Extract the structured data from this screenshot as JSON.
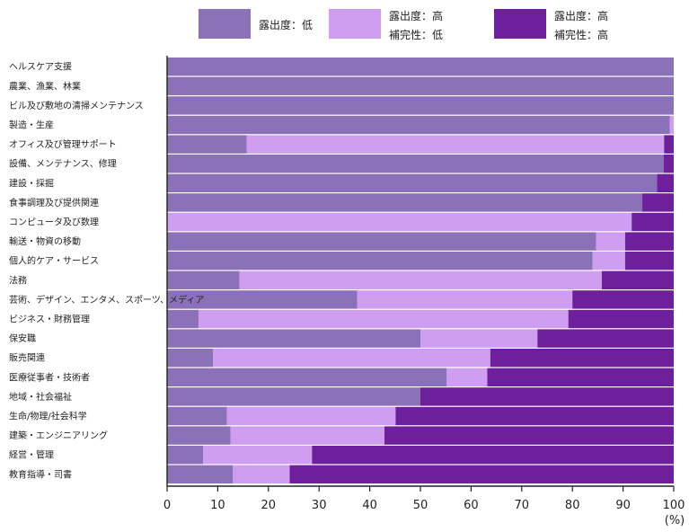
{
  "chart_data": {
    "type": "bar",
    "orientation": "horizontal",
    "stacked": true,
    "title": "",
    "xlabel": "",
    "x_unit": "(%)",
    "xlim": [
      0,
      100
    ],
    "xticks": [
      0,
      10,
      20,
      30,
      40,
      50,
      60,
      70,
      80,
      90,
      100
    ],
    "grid": false,
    "legend_position": "top",
    "categories": [
      "ヘルスケア支援",
      "農業、漁業、林業",
      "ビル及び敷地の清掃メンテナンス",
      "製造・生産",
      "オフィス及び管理サポート",
      "設備、メンテナンス、修理",
      "建設・採掘",
      "食事調理及び提供関連",
      "コンピュータ及び数理",
      "輸送・物資の移動",
      "個人的ケア・サービス",
      "法務",
      "芸術、デザイン、エンタメ、スポーツ、メディア",
      "ビジネス・財務管理",
      "保安職",
      "販売関連",
      "医療従事者・技術者",
      "地域・社会福祉",
      "生命/物理/社会科学",
      "建築・エンジニアリング",
      "経営・管理",
      "教育指導・司書"
    ],
    "series": [
      {
        "name": "露出度：低",
        "color": "#8b72b8",
        "values": [
          100,
          100,
          100,
          99.2,
          15.7,
          98,
          96.7,
          93.8,
          0,
          84.7,
          84,
          14.3,
          37.5,
          6.2,
          50,
          9.1,
          55.2,
          50,
          11.8,
          12.5,
          7.1,
          13
        ]
      },
      {
        "name": "露出度：高\n補完性：低",
        "color": "#cf9ef0",
        "values": [
          0,
          0,
          0,
          0.8,
          82.4,
          0,
          0,
          0,
          91.7,
          5.7,
          6.4,
          71.5,
          42.5,
          73,
          23.1,
          54.7,
          8,
          0,
          33.3,
          30.4,
          21.5,
          11.2
        ]
      },
      {
        "name": "露出度：高\n補完性：高",
        "color": "#6d1f9c",
        "values": [
          0,
          0,
          0,
          0,
          1.9,
          2,
          3.3,
          6.2,
          8.3,
          9.6,
          9.6,
          14.2,
          20,
          20.8,
          26.9,
          36.2,
          36.8,
          50,
          54.9,
          57.1,
          71.4,
          75.8
        ]
      }
    ]
  }
}
